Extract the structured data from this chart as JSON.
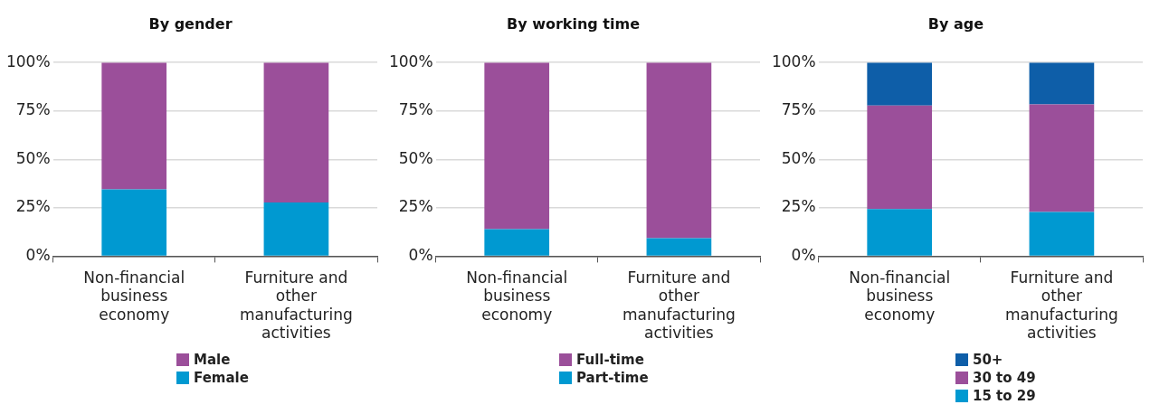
{
  "chart_data": [
    {
      "type": "bar",
      "title": "By gender",
      "categories": [
        "Non-financial business economy",
        "Furniture and other manufacturing activities"
      ],
      "stacked": true,
      "ylim": [
        0,
        100
      ],
      "yticks": [
        {
          "value": 0,
          "label": "0%"
        },
        {
          "value": 25,
          "label": "25%"
        },
        {
          "value": 50,
          "label": "50%"
        },
        {
          "value": 75,
          "label": "75%"
        },
        {
          "value": 100,
          "label": "100%"
        }
      ],
      "grid": "y",
      "legend": "bottom",
      "series": [
        {
          "name": "Female",
          "color": "#0099d1",
          "values": [
            34.5,
            27.7
          ]
        },
        {
          "name": "Male",
          "color": "#9b4f9a",
          "values": [
            65.5,
            72.3
          ]
        }
      ]
    },
    {
      "type": "bar",
      "title": "By working time",
      "categories": [
        "Non-financial business economy",
        "Furniture and other manufacturing activities"
      ],
      "stacked": true,
      "ylim": [
        0,
        100
      ],
      "yticks": [
        {
          "value": 0,
          "label": "0%"
        },
        {
          "value": 25,
          "label": "25%"
        },
        {
          "value": 50,
          "label": "50%"
        },
        {
          "value": 75,
          "label": "75%"
        },
        {
          "value": 100,
          "label": "100%"
        }
      ],
      "grid": "y",
      "legend": "bottom",
      "series": [
        {
          "name": "Part-time",
          "color": "#0099d1",
          "values": [
            14,
            9.3
          ]
        },
        {
          "name": "Full-time",
          "color": "#9b4f9a",
          "values": [
            86,
            90.7
          ]
        }
      ]
    },
    {
      "type": "bar",
      "title": "By age",
      "categories": [
        "Non-financial business economy",
        "Furniture and other manufacturing activities"
      ],
      "stacked": true,
      "ylim": [
        0,
        100
      ],
      "yticks": [
        {
          "value": 0,
          "label": "0%"
        },
        {
          "value": 25,
          "label": "25%"
        },
        {
          "value": 50,
          "label": "50%"
        },
        {
          "value": 75,
          "label": "75%"
        },
        {
          "value": 100,
          "label": "100%"
        }
      ],
      "grid": "y",
      "legend": "bottom",
      "series": [
        {
          "name": "15 to 29",
          "color": "#0099d1",
          "values": [
            24.3,
            22.8
          ]
        },
        {
          "name": "30 to 49",
          "color": "#9b4f9a",
          "values": [
            53.5,
            55.6
          ]
        },
        {
          "name": "50+",
          "color": "#0e5ea8",
          "values": [
            22.2,
            21.6
          ]
        }
      ]
    }
  ]
}
